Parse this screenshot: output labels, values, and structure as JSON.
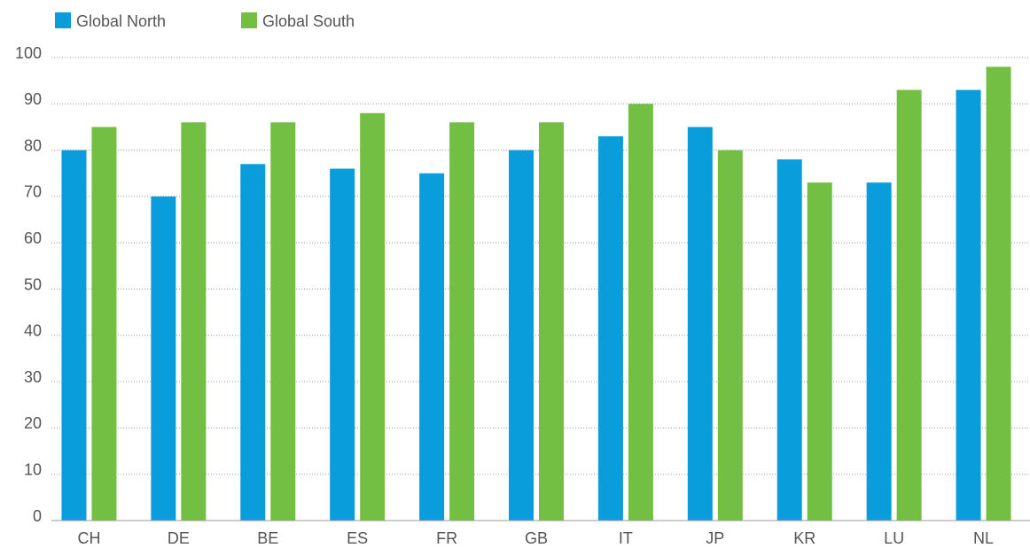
{
  "chart_data": {
    "type": "bar",
    "categories": [
      "CH",
      "DE",
      "BE",
      "ES",
      "FR",
      "GB",
      "IT",
      "JP",
      "KR",
      "LU",
      "NL"
    ],
    "series": [
      {
        "name": "Global North",
        "color": "#0a9ddb",
        "values": [
          80,
          70,
          77,
          76,
          75,
          80,
          83,
          85,
          78,
          73,
          93
        ]
      },
      {
        "name": "Global South",
        "color": "#72bf44",
        "values": [
          85,
          86,
          86,
          88,
          86,
          86,
          90,
          80,
          73,
          93,
          98
        ]
      }
    ],
    "ylim": [
      0,
      100
    ],
    "yticks": [
      0,
      10,
      20,
      30,
      40,
      50,
      60,
      70,
      80,
      90,
      100
    ],
    "grid": true
  }
}
